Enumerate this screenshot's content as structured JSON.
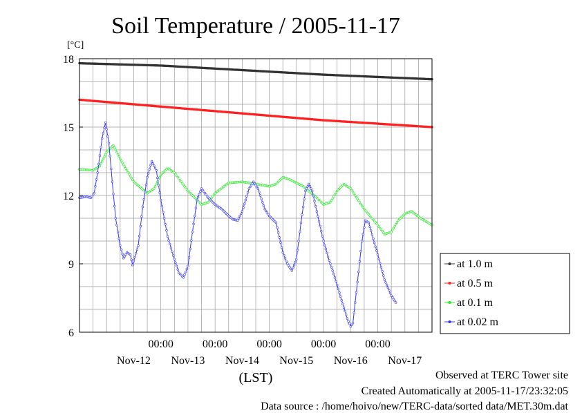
{
  "chart_data": {
    "type": "line",
    "title": "Soil Temperature / 2005-11-17",
    "ylabel": "[°C]",
    "xlabel": "(LST)",
    "ylim": [
      6,
      18
    ],
    "yticks": [
      6,
      9,
      12,
      15,
      18
    ],
    "xlim": [
      "2005-11-11 12:00",
      "2005-11-17 24:00"
    ],
    "x_time_labels": [
      "00:00",
      "00:00",
      "00:00",
      "00:00",
      "00:00"
    ],
    "x_date_labels": [
      "Nov-12",
      "Nov-13",
      "Nov-14",
      "Nov-15",
      "Nov-16",
      "Nov-17"
    ],
    "grid": true,
    "legend_position": "right",
    "series": [
      {
        "name": "at 1.0 m",
        "color": "#333333",
        "points": [
          [
            "2005-11-11 12:00",
            17.8
          ],
          [
            "2005-11-13 00:00",
            17.7
          ],
          [
            "2005-11-14 12:00",
            17.5
          ],
          [
            "2005-11-16 00:00",
            17.3
          ],
          [
            "2005-11-17 24:00",
            17.1
          ]
        ]
      },
      {
        "name": "at 0.5 m",
        "color": "#ff2020",
        "points": [
          [
            "2005-11-11 12:00",
            16.2
          ],
          [
            "2005-11-13 00:00",
            15.9
          ],
          [
            "2005-11-14 12:00",
            15.6
          ],
          [
            "2005-11-16 00:00",
            15.3
          ],
          [
            "2005-11-17 24:00",
            15.0
          ]
        ]
      },
      {
        "name": "at 0.1 m",
        "color": "#22ee22",
        "points": [
          [
            "2005-11-11 12:00",
            13.15
          ],
          [
            "2005-11-11 18:00",
            13.1
          ],
          [
            "2005-11-11 21:00",
            13.3
          ],
          [
            "2005-11-12 00:00",
            13.9
          ],
          [
            "2005-11-12 03:00",
            14.2
          ],
          [
            "2005-11-12 06:00",
            13.6
          ],
          [
            "2005-11-12 12:00",
            12.6
          ],
          [
            "2005-11-12 18:00",
            12.1
          ],
          [
            "2005-11-12 21:00",
            12.3
          ],
          [
            "2005-11-13 00:00",
            12.9
          ],
          [
            "2005-11-13 03:00",
            13.2
          ],
          [
            "2005-11-13 06:00",
            13.0
          ],
          [
            "2005-11-13 12:00",
            12.2
          ],
          [
            "2005-11-13 18:00",
            11.6
          ],
          [
            "2005-11-13 21:00",
            11.7
          ],
          [
            "2005-11-14 00:00",
            12.1
          ],
          [
            "2005-11-14 06:00",
            12.55
          ],
          [
            "2005-11-14 12:00",
            12.6
          ],
          [
            "2005-11-14 18:00",
            12.5
          ],
          [
            "2005-11-15 00:00",
            12.4
          ],
          [
            "2005-11-15 03:00",
            12.5
          ],
          [
            "2005-11-15 06:00",
            12.8
          ],
          [
            "2005-11-15 09:00",
            12.7
          ],
          [
            "2005-11-15 15:00",
            12.4
          ],
          [
            "2005-11-15 21:00",
            11.9
          ],
          [
            "2005-11-16 00:00",
            11.6
          ],
          [
            "2005-11-16 03:00",
            11.7
          ],
          [
            "2005-11-16 06:00",
            12.2
          ],
          [
            "2005-11-16 09:00",
            12.5
          ],
          [
            "2005-11-16 12:00",
            12.3
          ],
          [
            "2005-11-16 18:00",
            11.4
          ],
          [
            "2005-11-17 00:00",
            10.7
          ],
          [
            "2005-11-17 03:00",
            10.3
          ],
          [
            "2005-11-17 06:00",
            10.4
          ],
          [
            "2005-11-17 09:00",
            10.9
          ],
          [
            "2005-11-17 12:00",
            11.2
          ],
          [
            "2005-11-17 15:00",
            11.3
          ],
          [
            "2005-11-17 19:00",
            11.0
          ],
          [
            "2005-11-17 24:00",
            10.7
          ]
        ]
      },
      {
        "name": "at 0.02 m",
        "color": "#3333ff",
        "points": [
          [
            "2005-11-11 12:00",
            11.9
          ],
          [
            "2005-11-11 15:00",
            11.95
          ],
          [
            "2005-11-11 17:00",
            11.9
          ],
          [
            "2005-11-11 18:30",
            12.1
          ],
          [
            "2005-11-11 20:00",
            13.0
          ],
          [
            "2005-11-11 22:00",
            14.5
          ],
          [
            "2005-11-11 23:30",
            15.2
          ],
          [
            "2005-11-12 01:00",
            14.3
          ],
          [
            "2005-11-12 02:30",
            12.6
          ],
          [
            "2005-11-12 04:00",
            11.0
          ],
          [
            "2005-11-12 06:00",
            9.8
          ],
          [
            "2005-11-12 07:30",
            9.25
          ],
          [
            "2005-11-12 09:00",
            9.5
          ],
          [
            "2005-11-12 10:30",
            9.4
          ],
          [
            "2005-11-12 11:30",
            8.95
          ],
          [
            "2005-11-12 14:00",
            9.8
          ],
          [
            "2005-11-12 16:00",
            11.5
          ],
          [
            "2005-11-12 18:00",
            12.8
          ],
          [
            "2005-11-12 20:00",
            13.5
          ],
          [
            "2005-11-12 22:00",
            13.1
          ],
          [
            "2005-11-13 00:00",
            11.8
          ],
          [
            "2005-11-13 03:00",
            10.2
          ],
          [
            "2005-11-13 06:00",
            9.2
          ],
          [
            "2005-11-13 08:00",
            8.6
          ],
          [
            "2005-11-13 10:00",
            8.4
          ],
          [
            "2005-11-13 12:00",
            8.9
          ],
          [
            "2005-11-13 14:00",
            10.4
          ],
          [
            "2005-11-13 16:00",
            11.8
          ],
          [
            "2005-11-13 18:00",
            12.3
          ],
          [
            "2005-11-13 21:00",
            11.9
          ],
          [
            "2005-11-14 00:00",
            11.6
          ],
          [
            "2005-11-14 03:00",
            11.4
          ],
          [
            "2005-11-14 06:00",
            11.1
          ],
          [
            "2005-11-14 08:00",
            10.95
          ],
          [
            "2005-11-14 10:00",
            10.9
          ],
          [
            "2005-11-14 12:00",
            11.3
          ],
          [
            "2005-11-14 15:00",
            12.3
          ],
          [
            "2005-11-14 17:00",
            12.6
          ],
          [
            "2005-11-14 19:00",
            12.3
          ],
          [
            "2005-11-14 22:00",
            11.4
          ],
          [
            "2005-11-15 00:00",
            11.1
          ],
          [
            "2005-11-15 03:00",
            10.8
          ],
          [
            "2005-11-15 06:00",
            9.5
          ],
          [
            "2005-11-15 08:00",
            9.0
          ],
          [
            "2005-11-15 10:00",
            8.7
          ],
          [
            "2005-11-15 12:00",
            9.2
          ],
          [
            "2005-11-15 14:00",
            10.8
          ],
          [
            "2005-11-15 16:00",
            12.2
          ],
          [
            "2005-11-15 17:30",
            12.5
          ],
          [
            "2005-11-15 19:00",
            12.2
          ],
          [
            "2005-11-15 21:00",
            11.3
          ],
          [
            "2005-11-16 00:00",
            10.0
          ],
          [
            "2005-11-16 02:00",
            9.3
          ],
          [
            "2005-11-16 05:00",
            8.4
          ],
          [
            "2005-11-16 08:00",
            7.4
          ],
          [
            "2005-11-16 10:30",
            6.6
          ],
          [
            "2005-11-16 12:00",
            6.25
          ],
          [
            "2005-11-16 13:00",
            6.4
          ],
          [
            "2005-11-16 15:00",
            8.2
          ],
          [
            "2005-11-16 17:00",
            10.0
          ],
          [
            "2005-11-16 18:30",
            10.9
          ],
          [
            "2005-11-16 20:00",
            10.8
          ],
          [
            "2005-11-16 22:00",
            10.1
          ],
          [
            "2005-11-17 00:00",
            9.4
          ],
          [
            "2005-11-17 03:00",
            8.3
          ],
          [
            "2005-11-17 06:00",
            7.6
          ],
          [
            "2005-11-17 08:00",
            7.3
          ]
        ]
      }
    ]
  },
  "footer": {
    "observed": "Observed at TERC Tower site",
    "created": "Created Automatically at 2005-11-17/23:32:05",
    "source": "Data source : /home/hoivo/new/TERC-data/sorted  data/MET.30m.dat"
  }
}
